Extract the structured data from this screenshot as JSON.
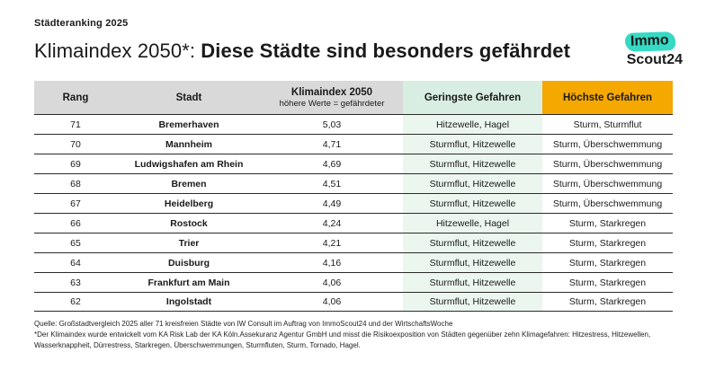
{
  "eyebrow": "Städteranking 2025",
  "title": {
    "regular": "Klimaindex 2050*: ",
    "bold": "Diese Städte sind besonders gefährdet"
  },
  "logo": {
    "immo": "Immo",
    "scout": "Scout24"
  },
  "chart_data": {
    "type": "table",
    "columns": [
      "Rang",
      "Stadt",
      "Klimaindex 2050",
      "Geringste Gefahren",
      "Höchste Gefahren"
    ],
    "klimaindex_sublabel": "höhere Werte = gefährdeter",
    "rows": [
      [
        "71",
        "Bremerhaven",
        "5,03",
        "Hitzewelle, Hagel",
        "Sturm, Sturmflut"
      ],
      [
        "70",
        "Mannheim",
        "4,71",
        "Sturmflut, Hitzewelle",
        "Sturm, Überschwemmung"
      ],
      [
        "69",
        "Ludwigshafen am Rhein",
        "4,69",
        "Sturmflut, Hitzewelle",
        "Sturm, Überschwemmung"
      ],
      [
        "68",
        "Bremen",
        "4,51",
        "Sturmflut, Hitzewelle",
        "Sturm, Überschwemmung"
      ],
      [
        "67",
        "Heidelberg",
        "4,49",
        "Sturmflut, Hitzewelle",
        "Sturm, Überschwemmung"
      ],
      [
        "66",
        "Rostock",
        "4,24",
        "Hitzewelle, Hagel",
        "Sturm, Starkregen"
      ],
      [
        "65",
        "Trier",
        "4,21",
        "Sturmflut, Hitzewelle",
        "Sturm, Starkregen"
      ],
      [
        "64",
        "Duisburg",
        "4,16",
        "Sturmflut, Hitzewelle",
        "Sturm, Starkregen"
      ],
      [
        "63",
        "Frankfurt am Main",
        "4,06",
        "Sturmflut, Hitzewelle",
        "Sturm, Starkregen"
      ],
      [
        "62",
        "Ingolstadt",
        "4,06",
        "Sturmflut, Hitzewelle",
        "Sturm, Starkregen"
      ]
    ],
    "legend_position": "none",
    "grid": "horizontal-rules"
  },
  "footer": {
    "line1": "Quelle: Großstadtvergleich 2025 aller 71 kreisfreien Städte von IW Consult im Auftrag von ImmoScout24 und der WirtschaftsWoche",
    "line2": "*Der Klimaindex wurde entwickelt vom KA Risk Lab der KA Köln.Assekuranz Agentur GmbH und misst die Risikoexposition von Städten gegenüber zehn Klimagefahren: Hitzestress, Hitzewellen, Wasserknappheit, Dürrestress, Starkregen, Überschwemmungen, Sturmfluten, Sturm, Tornado, Hagel."
  },
  "colors": {
    "header_gray": "#d9d9d9",
    "header_mint": "#d9eee3",
    "header_orange": "#f5a800",
    "body_mint": "#ebf6ef",
    "logo_teal": "#35d9c4"
  }
}
